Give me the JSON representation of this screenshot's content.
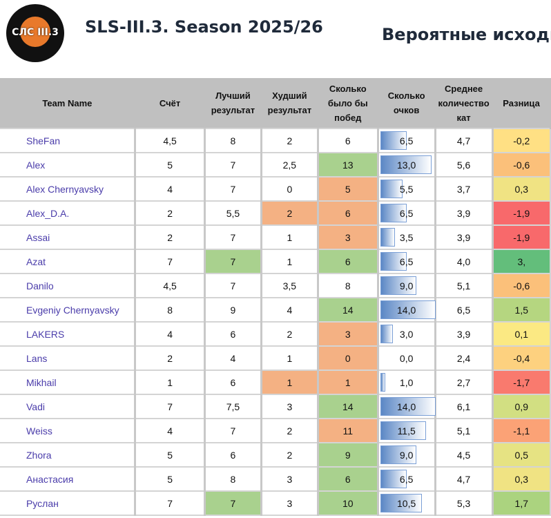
{
  "header": {
    "logo_text": "СЛС III.3",
    "title": "SLS-III.3. Season 2025/26",
    "subtitle": "Вероятные исходы"
  },
  "columns": [
    "Team Name",
    "Счёт",
    "Лучший результат",
    "Худший результат",
    "Сколько было бы побед",
    "Сколько очков",
    "Среднее количество кат",
    "Разница"
  ],
  "colors": {
    "good": "#a9d18e",
    "bad": "#f4b183",
    "bar": "#5b87c5"
  },
  "bar_max": 14,
  "rows": [
    {
      "team": "SheFan",
      "score": "4,5",
      "best": "8",
      "worst": "2",
      "wins": "6",
      "points": "6,5",
      "avg": "4,7",
      "diff": "-0,2",
      "best_c": "",
      "worst_c": "",
      "wins_c": "",
      "diff_c": "#ffe084"
    },
    {
      "team": "Alex",
      "score": "5",
      "best": "7",
      "worst": "2,5",
      "wins": "13",
      "points": "13,0",
      "avg": "5,6",
      "diff": "-0,6",
      "best_c": "",
      "worst_c": "",
      "wins_c": "g",
      "diff_c": "#fbc07a"
    },
    {
      "team": "Alex Chernyavsky",
      "score": "4",
      "best": "7",
      "worst": "0",
      "wins": "5",
      "points": "5,5",
      "avg": "3,7",
      "diff": "0,3",
      "best_c": "",
      "worst_c": "",
      "wins_c": "o",
      "diff_c": "#f0e383"
    },
    {
      "team": "Alex_D.A.",
      "score": "2",
      "best": "5,5",
      "worst": "2",
      "wins": "6",
      "points": "6,5",
      "avg": "3,9",
      "diff": "-1,9",
      "best_c": "",
      "worst_c": "o",
      "wins_c": "o",
      "diff_c": "#f8696b"
    },
    {
      "team": "Assai",
      "score": "2",
      "best": "7",
      "worst": "1",
      "wins": "3",
      "points": "3,5",
      "avg": "3,9",
      "diff": "-1,9",
      "best_c": "",
      "worst_c": "",
      "wins_c": "o",
      "diff_c": "#f8696b"
    },
    {
      "team": "Azat",
      "score": "7",
      "best": "7",
      "worst": "1",
      "wins": "6",
      "points": "6,5",
      "avg": "4,0",
      "diff": "3,",
      "best_c": "g",
      "worst_c": "",
      "wins_c": "g",
      "diff_c": "#63be7b"
    },
    {
      "team": "Danilo",
      "score": "4,5",
      "best": "7",
      "worst": "3,5",
      "wins": "8",
      "points": "9,0",
      "avg": "5,1",
      "diff": "-0,6",
      "best_c": "",
      "worst_c": "",
      "wins_c": "",
      "diff_c": "#fbc07a"
    },
    {
      "team": "Evgeniy Chernyavsky",
      "score": "8",
      "best": "9",
      "worst": "4",
      "wins": "14",
      "points": "14,0",
      "avg": "6,5",
      "diff": "1,5",
      "best_c": "",
      "worst_c": "",
      "wins_c": "g",
      "diff_c": "#b5d680"
    },
    {
      "team": "LAKERS",
      "score": "4",
      "best": "6",
      "worst": "2",
      "wins": "3",
      "points": "3,0",
      "avg": "3,9",
      "diff": "0,1",
      "best_c": "",
      "worst_c": "",
      "wins_c": "o",
      "diff_c": "#fbe983"
    },
    {
      "team": "Lans",
      "score": "2",
      "best": "4",
      "worst": "1",
      "wins": "0",
      "points": "0,0",
      "avg": "2,4",
      "diff": "-0,4",
      "best_c": "",
      "worst_c": "",
      "wins_c": "o",
      "diff_c": "#fdd17f"
    },
    {
      "team": "Mikhail",
      "score": "1",
      "best": "6",
      "worst": "1",
      "wins": "1",
      "points": "1,0",
      "avg": "2,7",
      "diff": "-1,7",
      "best_c": "",
      "worst_c": "o",
      "wins_c": "o",
      "diff_c": "#f97a6e"
    },
    {
      "team": "Vadi",
      "score": "7",
      "best": "7,5",
      "worst": "3",
      "wins": "14",
      "points": "14,0",
      "avg": "6,1",
      "diff": "0,9",
      "best_c": "",
      "worst_c": "",
      "wins_c": "g",
      "diff_c": "#d2df82"
    },
    {
      "team": "Weiss",
      "score": "4",
      "best": "7",
      "worst": "2",
      "wins": "11",
      "points": "11,5",
      "avg": "5,1",
      "diff": "-1,1",
      "best_c": "",
      "worst_c": "",
      "wins_c": "o",
      "diff_c": "#fba276"
    },
    {
      "team": "Zhora",
      "score": "5",
      "best": "6",
      "worst": "2",
      "wins": "9",
      "points": "9,0",
      "avg": "4,5",
      "diff": "0,5",
      "best_c": "",
      "worst_c": "",
      "wins_c": "g",
      "diff_c": "#e6e383"
    },
    {
      "team": "Анастасия",
      "score": "5",
      "best": "8",
      "worst": "3",
      "wins": "6",
      "points": "6,5",
      "avg": "4,7",
      "diff": "0,3",
      "best_c": "",
      "worst_c": "",
      "wins_c": "g",
      "diff_c": "#f0e383"
    },
    {
      "team": "Руслан",
      "score": "7",
      "best": "7",
      "worst": "3",
      "wins": "10",
      "points": "10,5",
      "avg": "5,3",
      "diff": "1,7",
      "best_c": "g",
      "worst_c": "",
      "wins_c": "g",
      "diff_c": "#abd37f"
    }
  ]
}
